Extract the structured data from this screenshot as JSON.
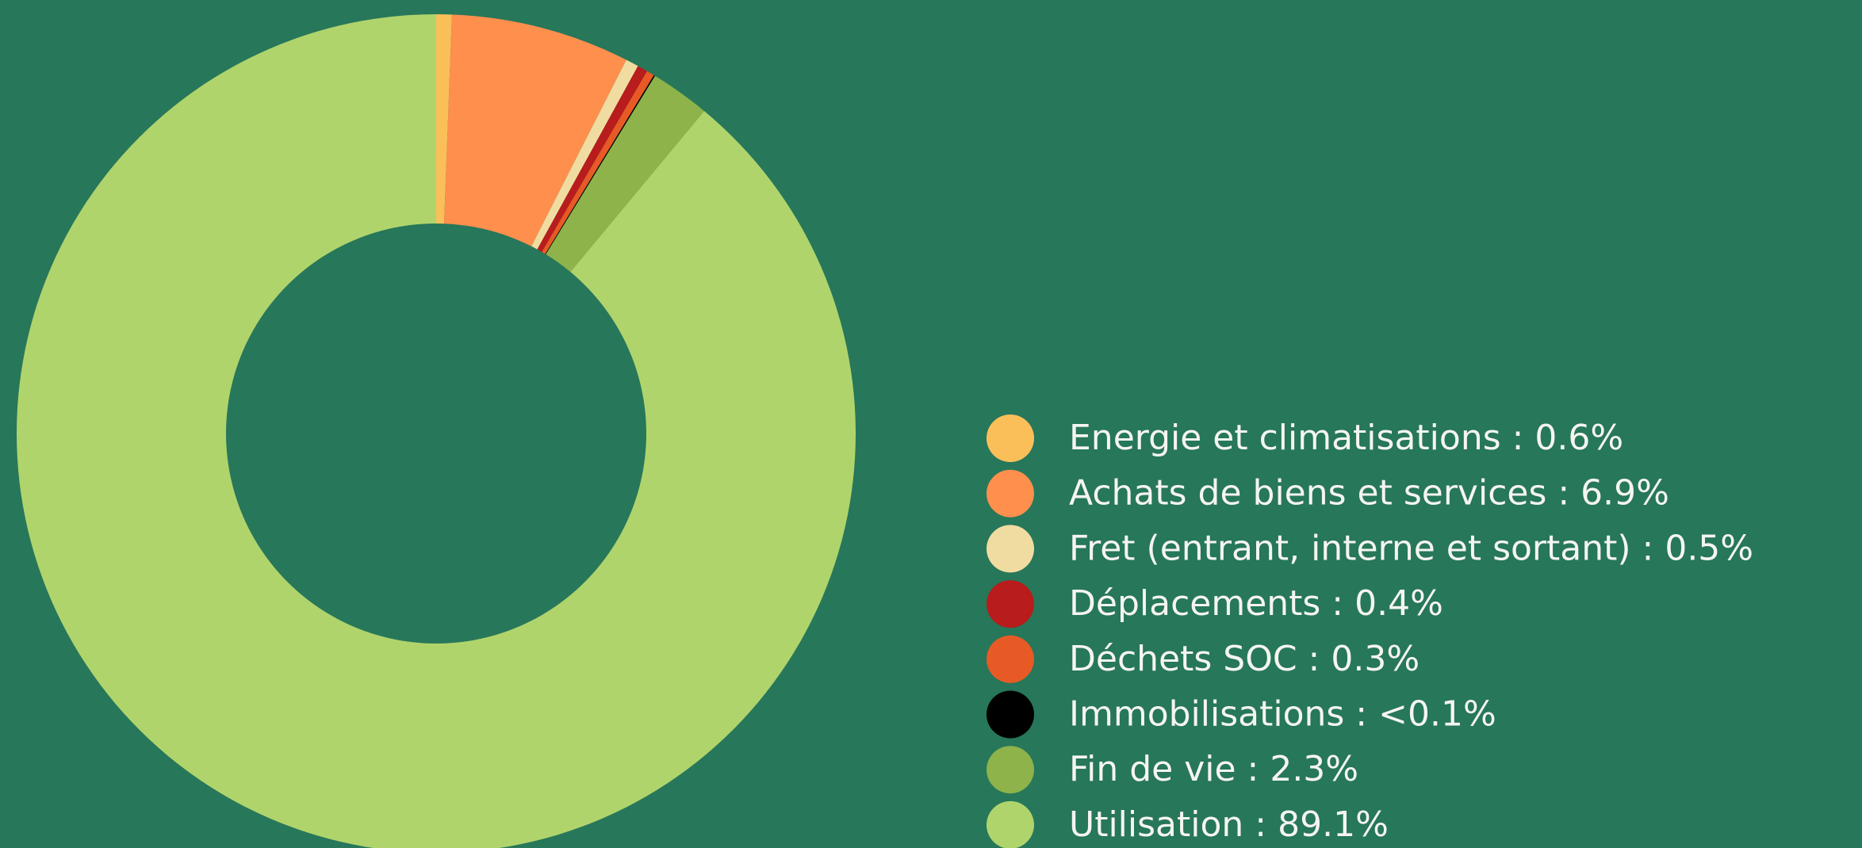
{
  "chart_data": {
    "type": "donut",
    "categories": [
      "Energie et climatisations : 0.6%",
      "Achats de biens et services : 6.9%",
      "Fret (entrant, interne et sortant) : 0.5%",
      "Déplacements : 0.4%",
      "Déchets SOC : 0.3%",
      "Immobilisations : <0.1%",
      "Fin de vie : 2.3%",
      "Utilisation : 89.1%"
    ],
    "values": [
      0.6,
      6.9,
      0.5,
      0.4,
      0.3,
      0.05,
      2.3,
      89.1
    ],
    "colors": [
      "#fbbf5a",
      "#fe8f4d",
      "#f0dca0",
      "#b81c1c",
      "#e85a25",
      "#000000",
      "#8db34a",
      "#b0d46c"
    ],
    "legend": "right"
  }
}
